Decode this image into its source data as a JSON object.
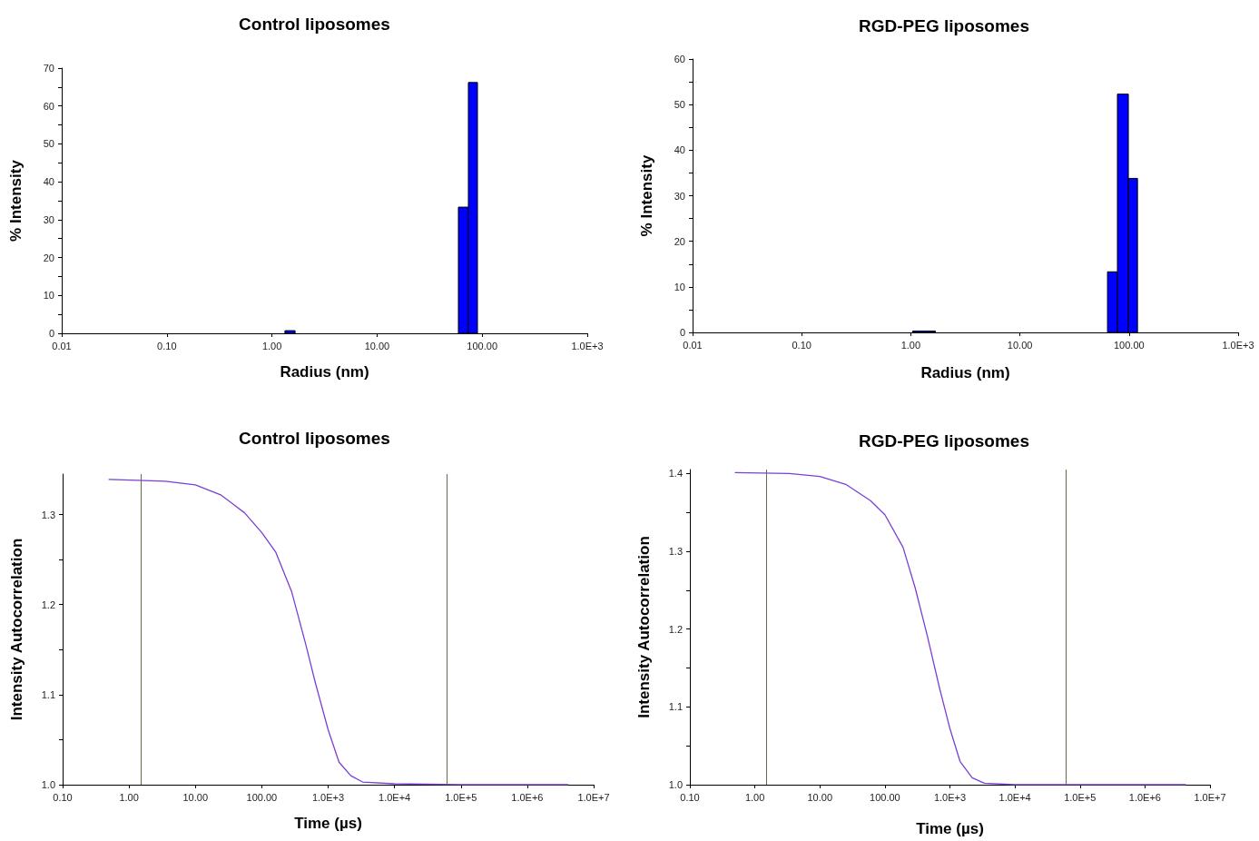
{
  "chart_data": [
    {
      "type": "histogram",
      "title": "Control liposomes",
      "xlabel": "Radius (nm)",
      "ylabel": "% Intensity",
      "log": "x",
      "color": "#0000ff",
      "bins": [
        1.33,
        1.66,
        59.4,
        73.9,
        90.2
      ],
      "values": [
        0.7,
        0,
        33.3,
        66.2
      ],
      "xlim": [
        0.01,
        1000
      ],
      "xticks": [
        0.01,
        {
          "value": 0.1,
          "label": "0.10"
        },
        {
          "value": 1,
          "label": "1.00"
        },
        {
          "value": 10,
          "label": "10.00"
        },
        {
          "value": 100,
          "label": "100.00"
        },
        {
          "value": 1000,
          "label": "1.0E+3"
        }
      ],
      "ylim": [
        0,
        70
      ],
      "yticks": [
        0,
        {
          "value": 5,
          "label": null
        },
        10,
        {
          "value": 15,
          "label": null
        },
        20,
        {
          "value": 25,
          "label": null
        },
        30,
        {
          "value": 35,
          "label": null
        },
        40,
        {
          "value": 45,
          "label": null
        },
        50,
        {
          "value": 55,
          "label": null
        },
        60,
        {
          "value": 65,
          "label": null
        },
        70
      ]
    },
    {
      "type": "histogram",
      "title": "RGD-PEG liposomes",
      "xlabel": "Radius (nm)",
      "ylabel": "% Intensity",
      "log": "x",
      "color": "#0000ff",
      "bins": [
        1.04,
        1.68,
        63.5,
        78.3,
        98.6,
        119.6
      ],
      "values": [
        0.3,
        0,
        13.3,
        52.3,
        33.8
      ],
      "xlim": [
        0.01,
        1000
      ],
      "xticks": [
        0.01,
        {
          "value": 0.1,
          "label": "0.10"
        },
        {
          "value": 1,
          "label": "1.00"
        },
        {
          "value": 10,
          "label": "10.00"
        },
        {
          "value": 100,
          "label": "100.00"
        },
        {
          "value": 1000,
          "label": "1.0E+3"
        }
      ],
      "ylim": [
        0,
        60
      ],
      "yticks": [
        0,
        {
          "value": 5,
          "label": null
        },
        10,
        {
          "value": 15,
          "label": null
        },
        20,
        {
          "value": 25,
          "label": null
        },
        30,
        {
          "value": 35,
          "label": null
        },
        40,
        {
          "value": 45,
          "label": null
        },
        50,
        {
          "value": 55,
          "label": null
        },
        60
      ]
    },
    {
      "type": "line",
      "title": "Control liposomes",
      "xlabel": "Time (µs)",
      "ylabel": "Intensity Autocorrelation",
      "log": "x",
      "marker": "none",
      "series": [
        {
          "color": "#7a3fd6",
          "x": [
            0.5,
            1.35,
            3.5,
            10,
            24,
            55,
            100,
            163,
            283,
            456,
            643,
            1000,
            1460,
            2200,
            3300,
            10000,
            100000,
            4100000
          ],
          "values": [
            1.339,
            1.338,
            1.337,
            1.333,
            1.322,
            1.302,
            1.28,
            1.258,
            1.214,
            1.157,
            1.113,
            1.061,
            1.025,
            1.01,
            1.003,
            1.001,
            1.0,
            1.0
          ]
        }
      ],
      "ref_lines": [
        {
          "axis": "x",
          "value": 1.5,
          "color": "#6b6b45"
        },
        {
          "axis": "x",
          "value": 61000,
          "color": "#6b6b45"
        }
      ],
      "xlim": [
        0.1,
        10000000
      ],
      "xticks": [
        {
          "value": 0.1,
          "label": "0.10"
        },
        {
          "value": 1,
          "label": "1.00"
        },
        {
          "value": 10,
          "label": "10.00"
        },
        {
          "value": 100,
          "label": "100.00"
        },
        {
          "value": 1000,
          "label": "1.0E+3"
        },
        {
          "value": 10000,
          "label": "1.0E+4"
        },
        {
          "value": 100000,
          "label": "1.0E+5"
        },
        {
          "value": 1000000,
          "label": "1.0E+6"
        },
        {
          "value": 10000000,
          "label": "1.0E+7"
        }
      ],
      "ylim": [
        1,
        1.345
      ],
      "yticks": [
        {
          "value": 1,
          "label": "1.0"
        },
        {
          "value": 1.05,
          "label": null
        },
        1.1,
        {
          "value": 1.15,
          "label": null
        },
        1.2,
        {
          "value": 1.25,
          "label": null
        },
        1.3
      ]
    },
    {
      "type": "line",
      "title": "RGD-PEG liposomes",
      "xlabel": "Time (µs)",
      "ylabel": "Intensity Autocorrelation",
      "log": "x",
      "marker": "none",
      "series": [
        {
          "color": "#7a3fd6",
          "x": [
            0.5,
            3.4,
            10,
            25,
            60,
            100,
            190,
            292,
            450,
            693,
            1000,
            1430,
            2200,
            3390,
            10000,
            100000,
            4200000
          ],
          "values": [
            1.401,
            1.4,
            1.396,
            1.386,
            1.365,
            1.347,
            1.305,
            1.253,
            1.191,
            1.124,
            1.072,
            1.03,
            1.009,
            1.002,
            1.0,
            1.0,
            1.0
          ]
        }
      ],
      "ref_lines": [
        {
          "axis": "x",
          "value": 1.5,
          "color": "#6b6b45"
        },
        {
          "axis": "x",
          "value": 60000,
          "color": "#6b6b45"
        }
      ],
      "xlim": [
        0.1,
        10000000
      ],
      "xticks": [
        {
          "value": 0.1,
          "label": "0.10"
        },
        {
          "value": 1,
          "label": "1.00"
        },
        {
          "value": 10,
          "label": "10.00"
        },
        {
          "value": 100,
          "label": "100.00"
        },
        {
          "value": 1000,
          "label": "1.0E+3"
        },
        {
          "value": 10000,
          "label": "1.0E+4"
        },
        {
          "value": 100000,
          "label": "1.0E+5"
        },
        {
          "value": 1000000,
          "label": "1.0E+6"
        },
        {
          "value": 10000000,
          "label": "1.0E+7"
        }
      ],
      "ylim": [
        1,
        1.405
      ],
      "yticks": [
        {
          "value": 1,
          "label": "1.0"
        },
        {
          "value": 1.05,
          "label": null
        },
        1.1,
        {
          "value": 1.15,
          "label": null
        },
        1.2,
        {
          "value": 1.25,
          "label": null
        },
        1.3,
        {
          "value": 1.35,
          "label": null
        },
        1.4
      ]
    }
  ]
}
